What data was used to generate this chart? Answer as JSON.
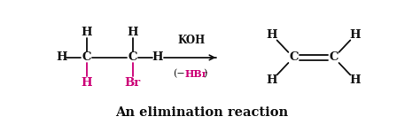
{
  "bg_color": "#ffffff",
  "title": "An elimination reaction",
  "title_fontsize": 10.5,
  "title_color": "#111111",
  "pink": "#cc0077",
  "black": "#111111",
  "xlim": [
    0,
    10
  ],
  "ylim": [
    0,
    3
  ],
  "figsize": [
    4.74,
    1.41
  ],
  "dpi": 100
}
